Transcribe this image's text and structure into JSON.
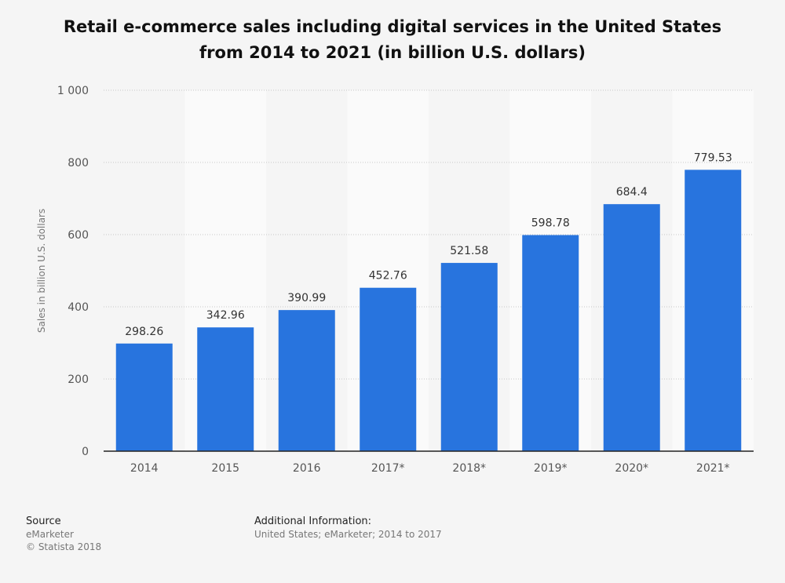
{
  "chart_data": {
    "type": "bar",
    "title": [
      "Retail e-commerce sales including digital services in the United States",
      "from 2014 to 2021 (in billion U.S. dollars)"
    ],
    "xlabel": "",
    "ylabel": "Sales in billion U.S. dollars",
    "categories": [
      "2014",
      "2015",
      "2016",
      "2017*",
      "2018*",
      "2019*",
      "2020*",
      "2021*"
    ],
    "values": [
      298.26,
      342.96,
      390.99,
      452.76,
      521.58,
      598.78,
      684.4,
      779.53
    ],
    "value_labels": [
      "298.26",
      "342.96",
      "390.99",
      "452.76",
      "521.58",
      "598.78",
      "684.4",
      "779.53"
    ],
    "ylim": [
      0,
      1000
    ],
    "yticks": [
      0,
      200,
      400,
      600,
      800,
      1000
    ],
    "ytick_labels": [
      "0",
      "200",
      "400",
      "600",
      "800",
      "1 000"
    ],
    "grid": true,
    "legend": "none",
    "bar_color": "#2874de",
    "alt_band_color": "#fafafa"
  },
  "footer": {
    "source_heading": "Source",
    "source_lines": [
      "eMarketer",
      "© Statista 2018"
    ],
    "info_heading": "Additional Information:",
    "info_line": "United States; eMarketer; 2014 to 2017"
  }
}
